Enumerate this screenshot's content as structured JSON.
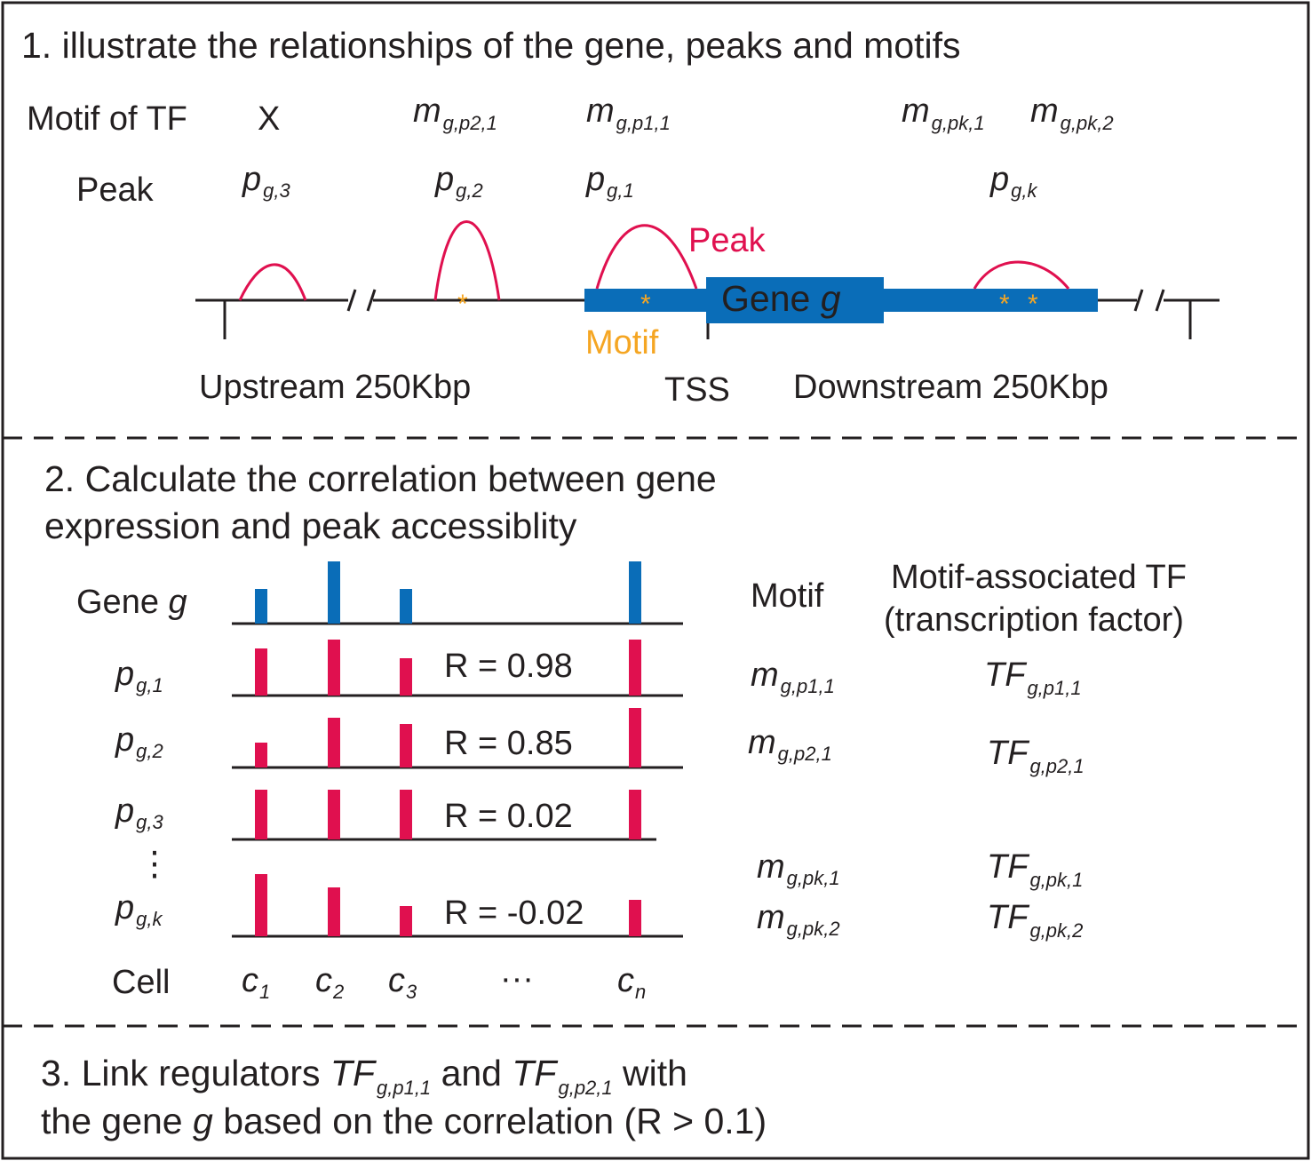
{
  "colors": {
    "gene": "#0a6db8",
    "peak": "#e0104f",
    "motif": "#f5a623",
    "ink": "#231f20"
  },
  "section1": {
    "title": "1. illustrate the relationships of the gene, peaks and motifs",
    "motif_row_label": "Motif of TF",
    "motif_x": "X",
    "peak_row_label": "Peak",
    "motif_sym": "m",
    "peak_sym": "p",
    "motifs": [
      {
        "sub": "g,p2,1"
      },
      {
        "sub": "g,p1,1"
      },
      {
        "sub": "g,pk,1"
      },
      {
        "sub": "g,pk,2"
      }
    ],
    "peaks": [
      {
        "sub": "g,3"
      },
      {
        "sub": "g,2"
      },
      {
        "sub": "g,1"
      },
      {
        "sub": "g,k"
      }
    ],
    "peak_label": "Peak",
    "gene_label": "Gene",
    "gene_var": "g",
    "motif_label": "Motif",
    "star": "*",
    "upstream": "Upstream 250Kbp",
    "tss": "TSS",
    "downstream": "Downstream 250Kbp"
  },
  "section2": {
    "title_line1": "2. Calculate the correlation between gene",
    "title_line2": "expression and peak accessiblity",
    "gene_row_label": "Gene",
    "gene_var": "g",
    "peak_sym": "p",
    "vdots": "⋮",
    "motif_header": "Motif",
    "tf_header_line1": "Motif-associated TF",
    "tf_header_line2": "(transcription factor)",
    "cell_label": "Cell",
    "cell_sym": "c",
    "cells": [
      {
        "sub": "1"
      },
      {
        "sub": "2"
      },
      {
        "sub": "3"
      },
      {
        "sub": "n"
      }
    ],
    "cell_ellipsis": "···",
    "gene_bars": [
      0.55,
      1.0,
      0.55,
      1.0
    ],
    "rows": [
      {
        "sub": "g,1",
        "r_label": "R = 0.98",
        "bars": [
          0.75,
          0.9,
          0.6,
          0.9
        ]
      },
      {
        "sub": "g,2",
        "r_label": "R = 0.85",
        "bars": [
          0.4,
          0.8,
          0.7,
          0.95
        ]
      },
      {
        "sub": "g,3",
        "r_label": "R = 0.02",
        "bars": [
          0.8,
          0.8,
          0.8,
          0.8
        ]
      },
      {
        "sub": "g,k",
        "r_label": "R = -0.02",
        "bars": [
          1.0,
          0.78,
          0.48,
          0.58
        ]
      }
    ],
    "motif_sym": "m",
    "tf_sym": "TF",
    "assoc": [
      {
        "m_sub": "g,p1,1",
        "tf_sub": "g,p1,1"
      },
      {
        "m_sub": "g,p2,1",
        "tf_sub": "g,p2,1"
      },
      {
        "m_sub": "g,pk,1",
        "tf_sub": "g,pk,1"
      },
      {
        "m_sub": "g,pk,2",
        "tf_sub": "g,pk,2"
      }
    ]
  },
  "section3": {
    "line1_a": "3. Link regulators ",
    "tf_sym": "TF",
    "tf1_sub": "g,p1,1",
    "line1_b": " and ",
    "tf2_sub": "g,p2,1",
    "line1_c": " with",
    "line2_a": "the gene ",
    "gene_var": "g",
    "line2_b": " based on the correlation (R > 0.1)"
  }
}
